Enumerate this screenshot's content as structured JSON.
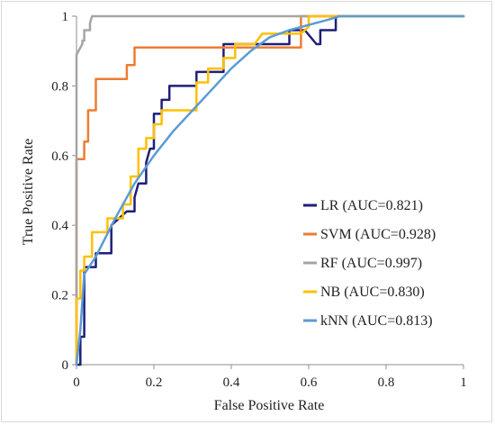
{
  "chart_data": {
    "type": "line",
    "title": "",
    "xlabel": "False Positive Rate",
    "ylabel": "True Positive Rate",
    "xlim": [
      0,
      1
    ],
    "ylim": [
      0,
      1
    ],
    "x_ticks": [
      "0",
      "0.2",
      "0.4",
      "0.6",
      "0.8",
      "1"
    ],
    "y_ticks": [
      "0",
      "0.2",
      "0.4",
      "0.6",
      "0.8",
      "1"
    ],
    "grid": false,
    "legend_position": "right",
    "series": [
      {
        "name": "LR (AUC=0.821)",
        "color": "#1f1f7a",
        "x": [
          0,
          0.01,
          0.01,
          0.02,
          0.02,
          0.03,
          0.05,
          0.05,
          0.07,
          0.09,
          0.09,
          0.13,
          0.15,
          0.15,
          0.16,
          0.18,
          0.18,
          0.19,
          0.2,
          0.2,
          0.22,
          0.22,
          0.23,
          0.24,
          0.24,
          0.28,
          0.29,
          0.31,
          0.31,
          0.35,
          0.36,
          0.38,
          0.38,
          0.43,
          0.45,
          0.46,
          0.52,
          0.55,
          0.55,
          0.58,
          0.59,
          0.59,
          0.62,
          0.63,
          0.63,
          0.66,
          0.67,
          0.67,
          1.0
        ],
        "y": [
          0,
          0,
          0.08,
          0.08,
          0.28,
          0.28,
          0.28,
          0.32,
          0.32,
          0.32,
          0.4,
          0.44,
          0.44,
          0.48,
          0.52,
          0.52,
          0.58,
          0.62,
          0.62,
          0.72,
          0.72,
          0.76,
          0.76,
          0.76,
          0.8,
          0.8,
          0.8,
          0.8,
          0.84,
          0.84,
          0.84,
          0.84,
          0.92,
          0.92,
          0.92,
          0.92,
          0.92,
          0.92,
          0.96,
          0.96,
          0.96,
          0.96,
          0.92,
          0.92,
          0.96,
          0.96,
          0.96,
          1.0,
          1.0
        ]
      },
      {
        "name": "SVM (AUC=0.928)",
        "color": "#ed7d31",
        "x": [
          0,
          0,
          0.02,
          0.02,
          0.03,
          0.03,
          0.05,
          0.05,
          0.08,
          0.09,
          0.1,
          0.13,
          0.13,
          0.15,
          0.15,
          0.18,
          0.2,
          0.25,
          0.3,
          0.35,
          0.4,
          0.48,
          0.52,
          0.55,
          0.57,
          0.58,
          0.58,
          0.62,
          0.67,
          1.0
        ],
        "y": [
          0,
          0.59,
          0.59,
          0.64,
          0.64,
          0.73,
          0.73,
          0.82,
          0.82,
          0.82,
          0.82,
          0.82,
          0.86,
          0.86,
          0.91,
          0.91,
          0.91,
          0.91,
          0.91,
          0.91,
          0.91,
          0.91,
          0.91,
          0.91,
          0.91,
          0.91,
          1.0,
          1.0,
          1.0,
          1.0
        ]
      },
      {
        "name": "RF (AUC=0.997)",
        "color": "#a5a5a5",
        "x": [
          0,
          0,
          0.005,
          0.01,
          0.015,
          0.015,
          0.02,
          0.02,
          0.03,
          0.035,
          0.035,
          0.04,
          1.0
        ],
        "y": [
          0,
          0.89,
          0.9,
          0.91,
          0.92,
          0.93,
          0.93,
          0.96,
          0.96,
          0.96,
          0.98,
          1.0,
          1.0
        ]
      },
      {
        "name": "NB (AUC=0.830)",
        "color": "#ffc000",
        "x": [
          0,
          0,
          0.01,
          0.01,
          0.02,
          0.02,
          0.04,
          0.04,
          0.08,
          0.08,
          0.12,
          0.12,
          0.14,
          0.14,
          0.16,
          0.16,
          0.18,
          0.18,
          0.2,
          0.2,
          0.22,
          0.22,
          0.25,
          0.25,
          0.31,
          0.31,
          0.34,
          0.34,
          0.38,
          0.38,
          0.41,
          0.41,
          0.44,
          0.46,
          0.48,
          0.52,
          0.54,
          0.58,
          0.6,
          0.6,
          0.65,
          0.68,
          1.0
        ],
        "y": [
          0,
          0.19,
          0.19,
          0.27,
          0.27,
          0.31,
          0.31,
          0.38,
          0.38,
          0.42,
          0.42,
          0.46,
          0.46,
          0.54,
          0.54,
          0.62,
          0.62,
          0.65,
          0.65,
          0.69,
          0.69,
          0.73,
          0.73,
          0.73,
          0.73,
          0.81,
          0.81,
          0.85,
          0.85,
          0.88,
          0.88,
          0.92,
          0.92,
          0.92,
          0.95,
          0.95,
          0.95,
          0.95,
          0.97,
          1.0,
          1.0,
          1.0,
          1.0
        ]
      },
      {
        "name": "kNN (AUC=0.813)",
        "color": "#5b9bd5",
        "x": [
          0,
          0.01,
          0.02,
          0.05,
          0.1,
          0.15,
          0.2,
          0.25,
          0.3,
          0.35,
          0.4,
          0.45,
          0.5,
          0.55,
          0.6,
          0.65,
          0.68,
          0.8,
          1.0
        ],
        "y": [
          0,
          0.1,
          0.26,
          0.31,
          0.42,
          0.52,
          0.6,
          0.67,
          0.73,
          0.79,
          0.85,
          0.9,
          0.94,
          0.96,
          0.975,
          0.99,
          1.0,
          1.0,
          1.0
        ]
      }
    ]
  }
}
